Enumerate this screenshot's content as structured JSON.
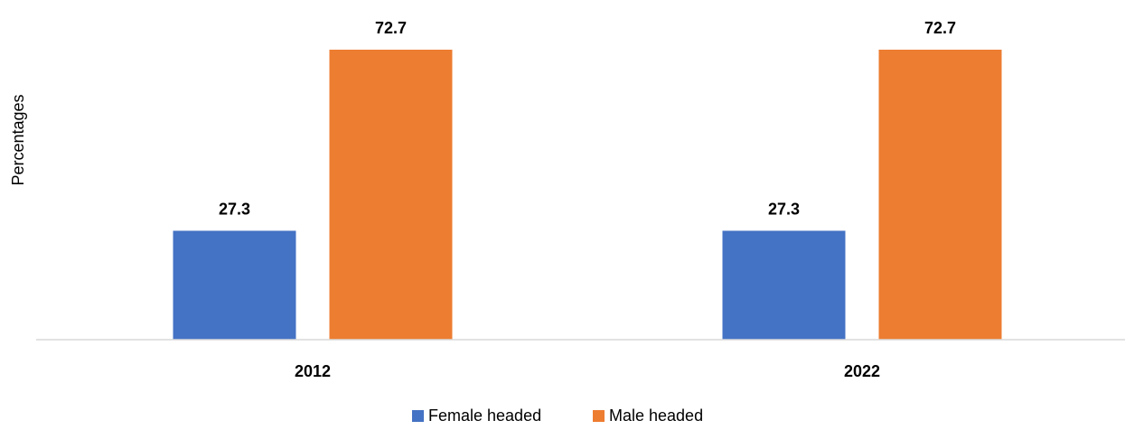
{
  "chart_data": {
    "type": "bar",
    "categories": [
      "2012",
      "2022"
    ],
    "series": [
      {
        "name": "Female headed",
        "values": [
          27.3,
          27.3
        ],
        "color": "#4472C4"
      },
      {
        "name": "Male headed",
        "values": [
          72.7,
          72.7
        ],
        "color": "#ED7D31"
      }
    ],
    "data_labels": [
      [
        "27.3",
        "27.3"
      ],
      [
        "72.7",
        "72.7"
      ]
    ],
    "ylabel": "Percentages",
    "xlabel": "",
    "ylim": [
      0,
      80
    ],
    "grid": false,
    "legend_position": "bottom",
    "axis_color": "#D9D9D9"
  }
}
